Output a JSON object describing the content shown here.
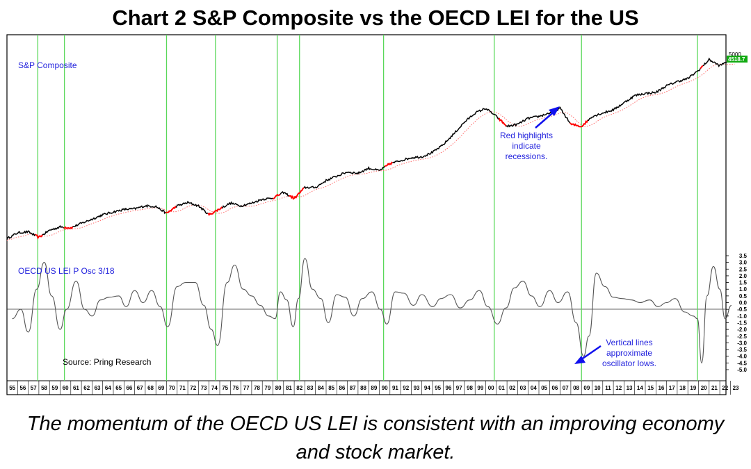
{
  "title": "Chart 2 S&P Composite vs the OECD LEI for the US",
  "caption": "The momentum of the OECD US LEI is consistent with an improving economy and stock market.",
  "colors": {
    "price": "#000000",
    "recession": "#ff0000",
    "trend": "#ff6666",
    "osc": "#555555",
    "vline": "#5ad85a",
    "label": "#2222dd",
    "arrow": "#1010ee"
  },
  "chart_data": [
    {
      "type": "line",
      "title": "S&P Composite",
      "scale": "log",
      "ylim": [
        60,
        6000
      ],
      "right_tick_label": "5000",
      "last_value_label": "4518.7",
      "x": [
        1955,
        1956,
        1957,
        1958,
        1959,
        1960,
        1961,
        1962,
        1963,
        1964,
        1965,
        1966,
        1967,
        1968,
        1969,
        1970,
        1971,
        1972,
        1973,
        1974,
        1975,
        1976,
        1977,
        1978,
        1979,
        1980,
        1981,
        1982,
        1983,
        1984,
        1985,
        1986,
        1987,
        1988,
        1989,
        1990,
        1991,
        1992,
        1993,
        1994,
        1995,
        1996,
        1997,
        1998,
        1999,
        2000,
        2001,
        2002,
        2003,
        2004,
        2005,
        2006,
        2007,
        2008,
        2009,
        2010,
        2011,
        2012,
        2013,
        2014,
        2015,
        2016,
        2017,
        2018,
        2019,
        2020,
        2021,
        2022,
        2023
      ],
      "values": [
        70,
        80,
        82,
        72,
        85,
        92,
        90,
        100,
        110,
        122,
        130,
        138,
        140,
        150,
        148,
        126,
        150,
        162,
        150,
        122,
        140,
        160,
        150,
        160,
        175,
        180,
        205,
        178,
        230,
        230,
        270,
        300,
        330,
        320,
        360,
        340,
        400,
        430,
        460,
        470,
        520,
        620,
        800,
        1050,
        1300,
        1450,
        1200,
        950,
        1000,
        1150,
        1200,
        1300,
        1450,
        1000,
        950,
        1200,
        1300,
        1400,
        1650,
        1950,
        2050,
        2100,
        2450,
        2700,
        2900,
        3500,
        4500,
        3900,
        4519
      ],
      "recessions": [
        [
          1957.6,
          1958.3
        ],
        [
          1960.3,
          1961.1
        ],
        [
          1969.9,
          1970.9
        ],
        [
          1973.9,
          1975.2
        ],
        [
          1980.0,
          1980.6
        ],
        [
          1981.5,
          1982.9
        ],
        [
          1990.5,
          1991.2
        ],
        [
          2001.2,
          2001.9
        ],
        [
          2007.9,
          2009.5
        ],
        [
          2020.1,
          2020.4
        ]
      ],
      "annotations": {
        "red_highlights": "Red highlights indicate recessions."
      }
    },
    {
      "type": "line",
      "title": "OECD US LEI P Osc 3/18",
      "ylim": [
        -5.0,
        3.5
      ],
      "y_ticks": [
        "3.5",
        "3.0",
        "2.5",
        "2.0",
        "1.5",
        "1.0",
        "0.5",
        "0.0",
        "-0.5",
        "-1.0",
        "-1.5",
        "-2.0",
        "-2.5",
        "-3.0",
        "-3.5",
        "-4.0",
        "-4.5",
        "-5.0"
      ],
      "x": [
        1955.5,
        1956.3,
        1957,
        1957.8,
        1958.5,
        1959.2,
        1960,
        1960.6,
        1961.5,
        1962.3,
        1963,
        1963.8,
        1964.6,
        1965.5,
        1966.2,
        1967,
        1967.8,
        1968.6,
        1969.4,
        1970.1,
        1971,
        1971.8,
        1972.7,
        1973.5,
        1974.2,
        1974.8,
        1975.7,
        1976.4,
        1977.2,
        1978,
        1978.8,
        1979.6,
        1980.2,
        1980.7,
        1981.3,
        1981.9,
        1982.4,
        1983,
        1983.7,
        1984.5,
        1985.2,
        1986,
        1986.8,
        1987.6,
        1988.4,
        1989.3,
        1990.1,
        1990.7,
        1991.5,
        1992.3,
        1993.2,
        1994,
        1995,
        1995.8,
        1996.7,
        1997.6,
        1998.5,
        1999.4,
        2000.2,
        2001.1,
        2001.9,
        2002.7,
        2003.5,
        2004.3,
        2005.1,
        2006,
        2006.8,
        2007.7,
        2008.5,
        2009.2,
        2009.7,
        2010.4,
        2011.2,
        2012,
        2012.8,
        2013.7,
        2014.5,
        2015.4,
        2016.2,
        2017,
        2017.8,
        2018.7,
        2019.5,
        2019.9,
        2020.3,
        2020.8,
        2021.4,
        2022,
        2022.5,
        2023.1
      ],
      "values": [
        -1.2,
        -0.5,
        -2.2,
        1.0,
        3.0,
        0.5,
        -2.0,
        -0.5,
        1.6,
        -0.5,
        -1.0,
        0.2,
        0.4,
        0.5,
        -0.3,
        0.9,
        0.0,
        0.9,
        -0.3,
        -1.8,
        1.2,
        1.5,
        1.5,
        -0.2,
        -2.0,
        -3.2,
        1.5,
        2.8,
        1.0,
        0.5,
        -0.2,
        -1.0,
        -1.2,
        0.8,
        0.2,
        -1.8,
        0.3,
        3.3,
        1.0,
        0.3,
        -1.5,
        0.6,
        0.4,
        -1.0,
        0.3,
        0.8,
        -0.5,
        -1.6,
        0.8,
        0.7,
        -0.2,
        0.6,
        -0.3,
        0.3,
        0.6,
        -0.4,
        0.2,
        0.9,
        -0.3,
        -1.6,
        -0.4,
        1.1,
        1.6,
        0.5,
        -0.3,
        0.9,
        0.0,
        0.8,
        -1.5,
        -4.0,
        -2.5,
        2.2,
        1.2,
        0.4,
        0.3,
        0.2,
        0.0,
        0.2,
        -0.3,
        0.0,
        0.3,
        -0.7,
        -1.0,
        -1.2,
        -4.5,
        0.5,
        2.7,
        1.0,
        -1.2,
        -0.2
      ],
      "annotations": {
        "vertical_lines": "Vertical lines approximate oscillator lows."
      }
    }
  ],
  "osc_lows": [
    1957.9,
    1960.4,
    1970.0,
    1974.6,
    1980.4,
    1982.5,
    1990.4,
    2000.8,
    2009.0,
    2019.9
  ],
  "x_labels": [
    "55",
    "56",
    "57",
    "58",
    "59",
    "60",
    "61",
    "62",
    "63",
    "64",
    "65",
    "66",
    "67",
    "68",
    "69",
    "70",
    "71",
    "72",
    "73",
    "74",
    "75",
    "76",
    "77",
    "78",
    "79",
    "80",
    "81",
    "82",
    "83",
    "84",
    "85",
    "86",
    "87",
    "88",
    "89",
    "90",
    "91",
    "92",
    "93",
    "94",
    "95",
    "96",
    "97",
    "98",
    "99",
    "00",
    "01",
    "02",
    "03",
    "04",
    "05",
    "06",
    "07",
    "08",
    "09",
    "10",
    "11",
    "12",
    "13",
    "14",
    "15",
    "16",
    "17",
    "18",
    "19",
    "20",
    "21",
    "22",
    "23"
  ],
  "x_start_year": 1955,
  "source": "Source: Pring Research",
  "notes": {
    "red_highlights": [
      "Red highlights",
      "indicate",
      "recessions."
    ],
    "vertical_lines": [
      "Vertical lines",
      "approximate",
      "oscillator lows."
    ]
  }
}
